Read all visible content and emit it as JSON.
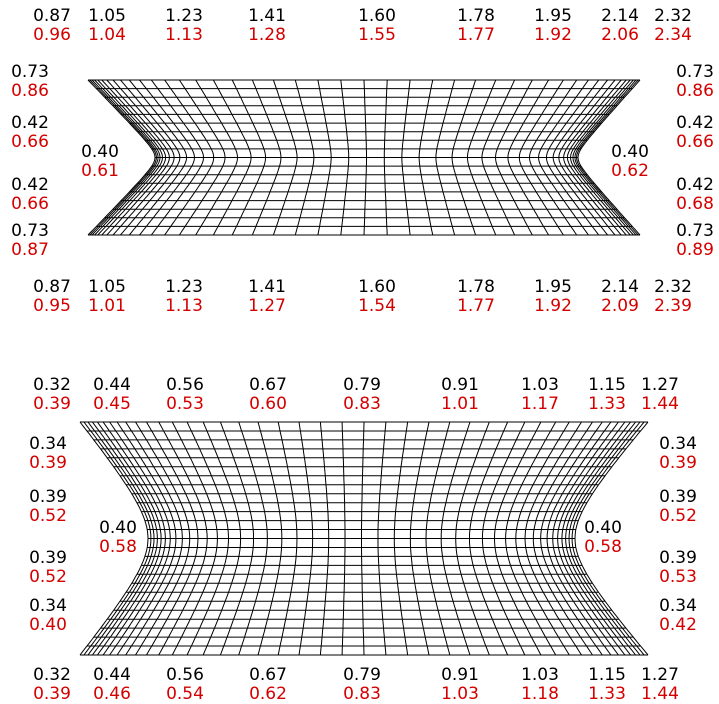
{
  "panels": [
    {
      "top": [
        {
          "a": "0.87",
          "b": "0.96"
        },
        {
          "a": "1.05",
          "b": "1.04"
        },
        {
          "a": "1.23",
          "b": "1.13"
        },
        {
          "a": "1.41",
          "b": "1.28"
        },
        {
          "a": "1.60",
          "b": "1.55"
        },
        {
          "a": "1.78",
          "b": "1.77"
        },
        {
          "a": "1.95",
          "b": "1.92"
        },
        {
          "a": "2.14",
          "b": "2.06"
        },
        {
          "a": "2.32",
          "b": "2.34"
        }
      ],
      "bottom": [
        {
          "a": "0.87",
          "b": "0.95"
        },
        {
          "a": "1.05",
          "b": "1.01"
        },
        {
          "a": "1.23",
          "b": "1.13"
        },
        {
          "a": "1.41",
          "b": "1.27"
        },
        {
          "a": "1.60",
          "b": "1.54"
        },
        {
          "a": "1.78",
          "b": "1.77"
        },
        {
          "a": "1.95",
          "b": "1.92"
        },
        {
          "a": "2.14",
          "b": "2.09"
        },
        {
          "a": "2.32",
          "b": "2.39"
        }
      ],
      "left": [
        {
          "a": "0.73",
          "b": "0.86"
        },
        {
          "a": "0.42",
          "b": "0.66"
        },
        {
          "a": "0.42",
          "b": "0.66"
        },
        {
          "a": "0.73",
          "b": "0.87"
        }
      ],
      "right": [
        {
          "a": "0.73",
          "b": "0.86"
        },
        {
          "a": "0.42",
          "b": "0.66"
        },
        {
          "a": "0.42",
          "b": "0.68"
        },
        {
          "a": "0.73",
          "b": "0.89"
        }
      ],
      "center_left": {
        "a": "0.40",
        "b": "0.61"
      },
      "center_right": {
        "a": "0.40",
        "b": "0.62"
      }
    },
    {
      "top": [
        {
          "a": "0.32",
          "b": "0.39"
        },
        {
          "a": "0.44",
          "b": "0.45"
        },
        {
          "a": "0.56",
          "b": "0.53"
        },
        {
          "a": "0.67",
          "b": "0.60"
        },
        {
          "a": "0.79",
          "b": "0.83"
        },
        {
          "a": "0.91",
          "b": "1.01"
        },
        {
          "a": "1.03",
          "b": "1.17"
        },
        {
          "a": "1.15",
          "b": "1.33"
        },
        {
          "a": "1.27",
          "b": "1.44"
        }
      ],
      "bottom": [
        {
          "a": "0.32",
          "b": "0.39"
        },
        {
          "a": "0.44",
          "b": "0.46"
        },
        {
          "a": "0.56",
          "b": "0.54"
        },
        {
          "a": "0.67",
          "b": "0.62"
        },
        {
          "a": "0.79",
          "b": "0.83"
        },
        {
          "a": "0.91",
          "b": "1.03"
        },
        {
          "a": "1.03",
          "b": "1.18"
        },
        {
          "a": "1.15",
          "b": "1.33"
        },
        {
          "a": "1.27",
          "b": "1.44"
        }
      ],
      "left": [
        {
          "a": "0.34",
          "b": "0.39"
        },
        {
          "a": "0.39",
          "b": "0.52"
        },
        {
          "a": "0.39",
          "b": "0.52"
        },
        {
          "a": "0.34",
          "b": "0.40"
        }
      ],
      "right": [
        {
          "a": "0.34",
          "b": "0.39"
        },
        {
          "a": "0.39",
          "b": "0.52"
        },
        {
          "a": "0.39",
          "b": "0.53"
        },
        {
          "a": "0.34",
          "b": "0.42"
        }
      ],
      "center_left": {
        "a": "0.40",
        "b": "0.58"
      },
      "center_right": {
        "a": "0.40",
        "b": "0.58"
      }
    }
  ]
}
